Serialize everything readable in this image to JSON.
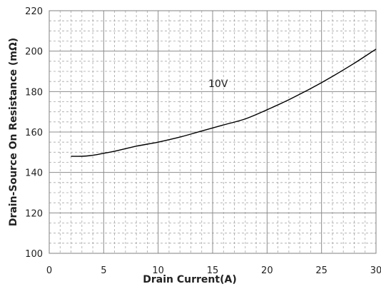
{
  "chart_data": {
    "type": "line",
    "title": "",
    "xlabel": "Drain Current(A)",
    "ylabel": "Drain-Source On Resistance (mΩ)",
    "xlim": [
      0,
      30
    ],
    "ylim": [
      100,
      220
    ],
    "x_ticks": [
      0,
      5,
      10,
      15,
      20,
      25,
      30
    ],
    "y_ticks": [
      100,
      120,
      140,
      160,
      180,
      200,
      220
    ],
    "x_tick_labels": [
      "0",
      "5",
      "10",
      "15",
      "20",
      "25",
      "30"
    ],
    "y_tick_labels": [
      "100",
      "120",
      "140",
      "160",
      "180",
      "200",
      "220"
    ],
    "grid": true,
    "minor_grid": true,
    "annotation": {
      "text": "10V",
      "x": 15,
      "y": 184
    },
    "series": [
      {
        "name": "",
        "color": "#000000",
        "x": [
          2,
          3,
          4,
          5,
          6,
          8,
          10,
          12,
          14,
          16,
          18,
          20,
          22,
          24,
          26,
          28,
          30
        ],
        "y": [
          148,
          148,
          148.5,
          149.5,
          150.5,
          153,
          155,
          157.5,
          160.5,
          163.5,
          166.5,
          171,
          176,
          181.5,
          187.5,
          194,
          201
        ]
      }
    ]
  }
}
